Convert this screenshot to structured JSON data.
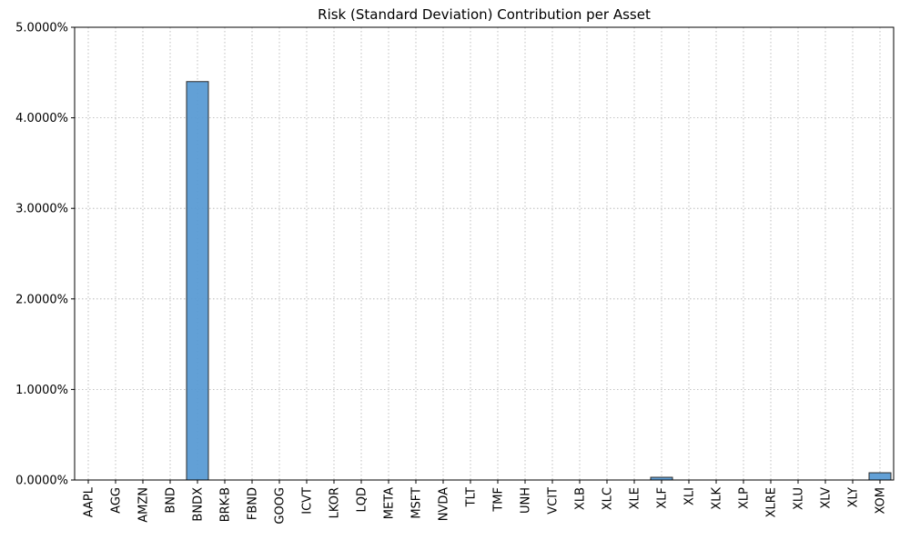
{
  "chart_data": {
    "type": "bar",
    "title": "Risk (Standard Deviation) Contribution per Asset",
    "xlabel": "",
    "ylabel": "",
    "ylim": [
      0,
      0.05
    ],
    "y_ticks": [
      0,
      0.01,
      0.02,
      0.03,
      0.04,
      0.05
    ],
    "y_tick_labels": [
      "0.0000%",
      "1.0000%",
      "2.0000%",
      "3.0000%",
      "4.0000%",
      "5.0000%"
    ],
    "grid": true,
    "categories": [
      "AAPL",
      "AGG",
      "AMZN",
      "BND",
      "BNDX",
      "BRK-B",
      "FBND",
      "GOOG",
      "ICVT",
      "LKOR",
      "LQD",
      "META",
      "MSFT",
      "NVDA",
      "TLT",
      "TMF",
      "UNH",
      "VCIT",
      "XLB",
      "XLC",
      "XLE",
      "XLF",
      "XLI",
      "XLK",
      "XLP",
      "XLRE",
      "XLU",
      "XLV",
      "XLY",
      "XOM"
    ],
    "values": [
      0,
      0,
      0,
      0,
      0.044,
      0,
      0,
      0,
      0,
      0,
      0,
      0,
      0,
      0,
      0,
      0,
      0,
      0,
      0,
      0,
      0,
      0.0003,
      0,
      0,
      0,
      0,
      0,
      0,
      0,
      0.0008
    ],
    "colors": {
      "bar": "#5a9bd4",
      "bar_edge": "#2b2b2b",
      "grid": "#b0b0b0",
      "axis": "#000000"
    }
  }
}
